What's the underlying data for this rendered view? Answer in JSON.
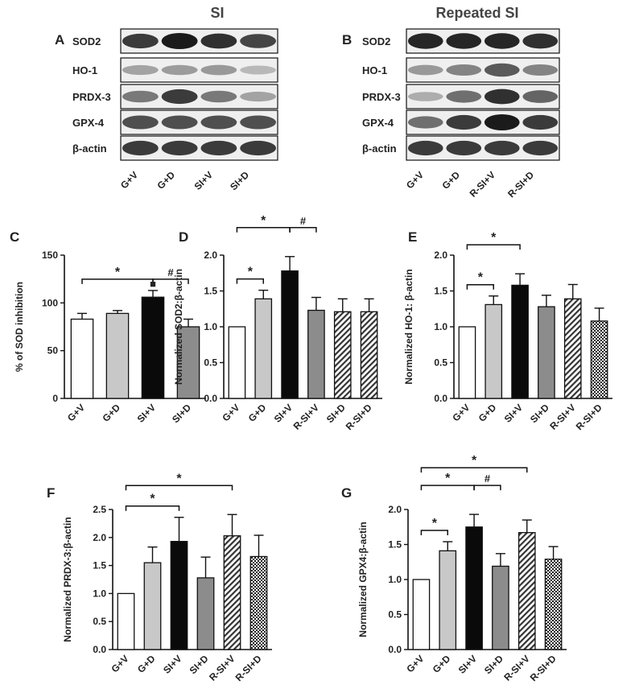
{
  "colors": {
    "white_bar": "#ffffff",
    "light_grey_bar": "#c8c8c8",
    "black_bar": "#0a0a0a",
    "mid_grey_bar": "#8c8c8c",
    "hatched_bar": "pattern-diagonal",
    "checker_bar": "pattern-check",
    "blot_band": "#1a1a1a"
  },
  "blots": [
    {
      "panel": "A",
      "header": "SI",
      "rows": [
        {
          "label": "SOD2",
          "intensity": [
            0.85,
            1.0,
            0.9,
            0.8
          ]
        },
        {
          "label": "HO-1",
          "intensity": [
            0.35,
            0.38,
            0.4,
            0.25
          ]
        },
        {
          "label": "PRDX-3",
          "intensity": [
            0.55,
            0.85,
            0.55,
            0.35
          ]
        },
        {
          "label": "GPX-4",
          "intensity": [
            0.75,
            0.75,
            0.75,
            0.75
          ]
        },
        {
          "label": "β-actin",
          "intensity": [
            0.85,
            0.85,
            0.85,
            0.85
          ]
        }
      ],
      "lanes": [
        "G+V",
        "G+D",
        "SI+V",
        "SI+D"
      ]
    },
    {
      "panel": "B",
      "header": "Repeated SI",
      "rows": [
        {
          "label": "SOD2",
          "intensity": [
            0.95,
            0.95,
            0.95,
            0.9
          ]
        },
        {
          "label": "HO-1",
          "intensity": [
            0.4,
            0.5,
            0.7,
            0.5
          ]
        },
        {
          "label": "PRDX-3",
          "intensity": [
            0.3,
            0.6,
            0.9,
            0.65
          ]
        },
        {
          "label": "GPX-4",
          "intensity": [
            0.6,
            0.85,
            1.0,
            0.85
          ]
        },
        {
          "label": "β-actin",
          "intensity": [
            0.85,
            0.85,
            0.85,
            0.85
          ]
        }
      ],
      "lanes": [
        "G+V",
        "G+D",
        "R-SI+V",
        "R-SI+D"
      ]
    }
  ],
  "chart_data": [
    {
      "panel": "C",
      "type": "bar",
      "ylabel": "% of SOD inhibition",
      "ylim": [
        0,
        150
      ],
      "yticks": [
        "0",
        "50",
        "100",
        "150"
      ],
      "categories": [
        "G+V",
        "G+D",
        "SI+V",
        "SI+D"
      ],
      "values": [
        83,
        89,
        106,
        75
      ],
      "errors": [
        6,
        3,
        7,
        8
      ],
      "fills": [
        "white",
        "light",
        "black",
        "mid"
      ],
      "brackets": [
        {
          "from": 0,
          "to": 2,
          "level": 0,
          "label": "*"
        },
        {
          "from": 2,
          "to": 3,
          "level": 0,
          "label": "#"
        }
      ],
      "marker_dot": {
        "on": 2,
        "label": "■"
      }
    },
    {
      "panel": "D",
      "type": "bar",
      "ylabel": "Normalized SOD2:β-actin",
      "ylim": [
        0,
        2.0
      ],
      "yticks": [
        "0.0",
        "0.5",
        "1.0",
        "1.5",
        "2.0"
      ],
      "categories": [
        "G+V",
        "G+D",
        "SI+V",
        "R-SI+V",
        "SI+D",
        "R-SI+D"
      ],
      "values": [
        1.0,
        1.39,
        1.78,
        1.23,
        1.21,
        1.21
      ],
      "errors": [
        0,
        0.12,
        0.2,
        0.18,
        0.18,
        0.18
      ],
      "fills": [
        "white",
        "light",
        "black",
        "mid",
        "hatch",
        "hatch"
      ],
      "brackets": [
        {
          "from": 0,
          "to": 1,
          "level": 0,
          "label": "*"
        },
        {
          "from": 0,
          "to": 2,
          "level": 1,
          "label": "*"
        },
        {
          "from": 2,
          "to": 3,
          "level": 1,
          "label": "#"
        }
      ]
    },
    {
      "panel": "E",
      "type": "bar",
      "ylabel": "Normalized HO-1: β-actin",
      "ylim": [
        0,
        2.0
      ],
      "yticks": [
        "0.0",
        "0.5",
        "1.0",
        "1.5",
        "2.0"
      ],
      "categories": [
        "G+V",
        "G+D",
        "SI+V",
        "SI+D",
        "R-SI+V",
        "R-SI+D"
      ],
      "values": [
        1.0,
        1.31,
        1.58,
        1.28,
        1.39,
        1.08
      ],
      "errors": [
        0,
        0.12,
        0.16,
        0.16,
        0.2,
        0.18
      ],
      "fills": [
        "white",
        "light",
        "black",
        "mid",
        "hatch",
        "check"
      ],
      "brackets": [
        {
          "from": 0,
          "to": 1,
          "level": 0,
          "label": "*"
        },
        {
          "from": 0,
          "to": 2,
          "level": 1,
          "label": "*"
        }
      ]
    },
    {
      "panel": "F",
      "type": "bar",
      "ylabel": "Normalized PRDX-3:β-actin",
      "ylim": [
        0,
        2.5
      ],
      "yticks": [
        "0.0",
        "0.5",
        "1.0",
        "1.5",
        "2.0",
        "2.5"
      ],
      "categories": [
        "G+V",
        "G+D",
        "SI+V",
        "SI+D",
        "R-SI+V",
        "R-SI+D"
      ],
      "values": [
        1.0,
        1.55,
        1.93,
        1.28,
        2.03,
        1.66
      ],
      "errors": [
        0,
        0.28,
        0.43,
        0.37,
        0.38,
        0.38
      ],
      "fills": [
        "white",
        "light",
        "black",
        "mid",
        "hatch",
        "check"
      ],
      "brackets": [
        {
          "from": 0,
          "to": 2,
          "level": 0,
          "label": "*"
        },
        {
          "from": 0,
          "to": 4,
          "level": 1,
          "label": "*"
        }
      ]
    },
    {
      "panel": "G",
      "type": "bar",
      "ylabel": "Normalized GPX4:β-actin",
      "ylim": [
        0,
        2.0
      ],
      "yticks": [
        "0.0",
        "0.5",
        "1.0",
        "1.5",
        "2.0"
      ],
      "categories": [
        "G+V",
        "G+D",
        "SI+V",
        "SI+D",
        "R-SI+V",
        "R-SI+D"
      ],
      "values": [
        1.0,
        1.41,
        1.75,
        1.19,
        1.67,
        1.29
      ],
      "errors": [
        0,
        0.13,
        0.18,
        0.18,
        0.18,
        0.18
      ],
      "fills": [
        "white",
        "light",
        "black",
        "mid",
        "hatch",
        "check"
      ],
      "brackets": [
        {
          "from": 0,
          "to": 1,
          "level": 0,
          "label": "*"
        },
        {
          "from": 0,
          "to": 2,
          "level": 1,
          "label": "*"
        },
        {
          "from": 2,
          "to": 3,
          "level": 1,
          "label": "#"
        },
        {
          "from": 0,
          "to": 4,
          "level": 2,
          "label": "*"
        }
      ]
    }
  ]
}
